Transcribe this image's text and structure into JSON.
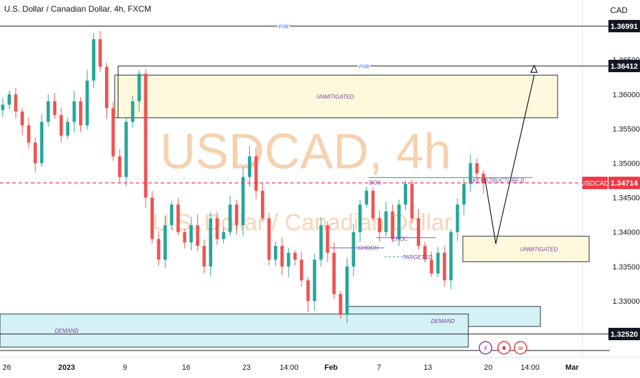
{
  "header": {
    "title": "U.S. Dollar / Canadian Dollar, 4h, FXCM",
    "currency": "CAD"
  },
  "watermark": {
    "main": "USDCAD, 4h",
    "sub": "U.S. Dollar / Canadian Dollar"
  },
  "price_tags": {
    "symbol": "USDCAD"
  },
  "colors": {
    "up": "#26a69a",
    "down": "#ef5350",
    "supply_fill": "#fff8dc",
    "demand_fill": "#d4f2f5",
    "demand_border": "#263238",
    "annotation": "#7b3fa0",
    "price_line": "#f23645",
    "watermark": "#f5c9a0"
  },
  "chart_data": {
    "type": "candlestick",
    "title": "U.S. Dollar / Canadian Dollar, 4h, FXCM",
    "y_axis": {
      "position": "right",
      "range": [
        1.3225,
        1.3735
      ],
      "ticks": [
        "1.36500",
        "1.36000",
        "1.35500",
        "1.35000",
        "1.34500",
        "1.34000",
        "1.33500",
        "1.33000"
      ],
      "unit": "CAD"
    },
    "x_axis": {
      "ticks": [
        "26",
        "2023",
        "9",
        "16",
        "23",
        "14:00",
        "Feb",
        "7",
        "13",
        "20",
        "14:00",
        "Mar"
      ]
    },
    "current_price": 1.34714,
    "price_labels": [
      {
        "label": "1.36991",
        "value": 1.36991
      },
      {
        "label": "1.36412",
        "value": 1.36412
      },
      {
        "label": "1.34714",
        "value": 1.34714
      },
      {
        "label": "1.32520",
        "value": 1.3252
      }
    ],
    "horizontal_lines": [
      {
        "text": "FOB",
        "value": 1.36991
      },
      {
        "text": "FOB",
        "value": 1.36412
      },
      {
        "text": "",
        "value": 1.3252
      }
    ],
    "zones": [
      {
        "kind": "supply",
        "text": "UNMITIGATED",
        "from": 1.3566,
        "to": 1.3628
      },
      {
        "kind": "supply",
        "text": "UNMITIGATED",
        "from": 1.3357,
        "to": 1.3394
      },
      {
        "kind": "demand",
        "text": "DEMAND",
        "from": 1.3263,
        "to": 1.3292
      },
      {
        "kind": "demand",
        "text": "DEMAND",
        "from": 1.3233,
        "to": 1.3281
      }
    ],
    "annotations": [
      {
        "text": "BOS",
        "value": 1.3475
      },
      {
        "text": "KEY STRUCTURE D",
        "value": 1.3475
      },
      {
        "text": "CHOCH",
        "value": 1.3377
      },
      {
        "text": "CHOC",
        "value": 1.339
      },
      {
        "text": "TARGETED",
        "value": 1.3364
      },
      {
        "text": "DEMAND",
        "value": 1.3275
      }
    ],
    "forecast_path": [
      1.3479,
      1.3383,
      1.3628
    ],
    "candles_closes": [
      1.3585,
      1.36,
      1.3575,
      1.3555,
      1.353,
      1.35,
      1.356,
      1.359,
      1.357,
      1.354,
      1.356,
      1.359,
      1.3555,
      1.362,
      1.368,
      1.364,
      1.358,
      1.351,
      1.348,
      1.356,
      1.359,
      1.363,
      1.345,
      1.339,
      1.336,
      1.341,
      1.344,
      1.34,
      1.3385,
      1.341,
      1.338,
      1.335,
      1.342,
      1.339,
      1.34,
      1.344,
      1.341,
      1.348,
      1.351,
      1.346,
      1.342,
      1.336,
      1.338,
      1.335,
      1.337,
      1.336,
      1.333,
      1.33,
      1.336,
      1.341,
      1.337,
      1.331,
      1.328,
      1.335,
      1.34,
      1.344,
      1.346,
      1.342,
      1.34,
      1.343,
      1.339,
      1.344,
      1.347,
      1.342,
      1.338,
      1.336,
      1.334,
      1.337,
      1.333,
      1.34,
      1.344,
      1.347,
      1.35,
      1.3485,
      1.3471
    ]
  }
}
